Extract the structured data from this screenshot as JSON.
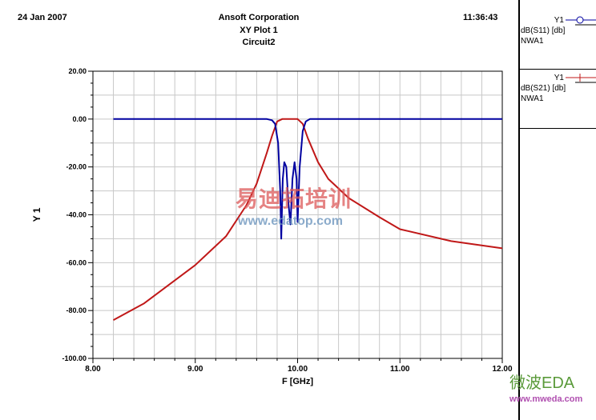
{
  "header": {
    "date": "24 Jan 2007",
    "company": "Ansoft Corporation",
    "plot_name": "XY Plot 1",
    "design": "Circuit2",
    "time": "11:36:43"
  },
  "legend": [
    {
      "axis": "Y1",
      "trace": "dB(S11) [db]",
      "source": "NWA1",
      "color": "#0000a0",
      "marker": "circle"
    },
    {
      "axis": "Y1",
      "trace": "dB(S21) [db]",
      "source": "NWA1",
      "color": "#c01818",
      "marker": "cross"
    }
  ],
  "watermarks": {
    "center_cn": "易迪拓培训",
    "center_url": "www.edatop.com",
    "corner_cn": "微波EDA",
    "corner_url": "www.mweda.com"
  },
  "chart_data": {
    "type": "line",
    "title": "XY Plot 1",
    "xlabel": "F [GHz]",
    "ylabel": "Y 1",
    "xlim": [
      8,
      12
    ],
    "ylim": [
      -100,
      20
    ],
    "grid": true,
    "xticks": [
      8,
      9,
      10,
      11,
      12
    ],
    "xtick_labels": [
      "8.00",
      "9.00",
      "10.00",
      "11.00",
      "12.00"
    ],
    "yticks": [
      20,
      0,
      -20,
      -40,
      -60,
      -80,
      -100
    ],
    "ytick_labels": [
      "20.00",
      "0.00",
      "-20.00",
      "-40.00",
      "-60.00",
      "-80.00",
      "-100.00"
    ],
    "series": [
      {
        "name": "dB(S11) [db]",
        "color": "#0000a0",
        "x": [
          8.2,
          9.7,
          9.75,
          9.78,
          9.81,
          9.83,
          9.84,
          9.855,
          9.87,
          9.89,
          9.91,
          9.93,
          9.95,
          9.97,
          9.99,
          10.0,
          10.02,
          10.05,
          10.08,
          10.12,
          12.0
        ],
        "y": [
          0,
          0,
          -0.5,
          -2,
          -10,
          -30,
          -50,
          -25,
          -18,
          -20,
          -35,
          -44,
          -25,
          -18,
          -25,
          -43,
          -20,
          -5,
          -1,
          0,
          0
        ]
      },
      {
        "name": "dB(S21) [db]",
        "color": "#c01818",
        "x": [
          8.2,
          8.5,
          9.0,
          9.3,
          9.5,
          9.6,
          9.7,
          9.75,
          9.8,
          9.85,
          10.0,
          10.05,
          10.1,
          10.2,
          10.3,
          10.5,
          10.8,
          11.0,
          11.5,
          12.0
        ],
        "y": [
          -84,
          -77,
          -61,
          -49,
          -36,
          -27,
          -14,
          -7,
          -1,
          0,
          0,
          -2,
          -8,
          -18,
          -25,
          -33,
          -41,
          -46,
          -51,
          -54
        ]
      }
    ]
  }
}
